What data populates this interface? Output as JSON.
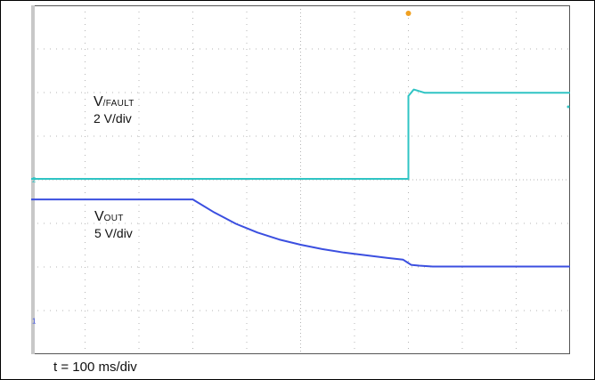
{
  "chart_data": {
    "type": "line",
    "title": "",
    "xlabel": "",
    "ylabel": "",
    "divisions": {
      "x": 10,
      "y": 8
    },
    "grid": true,
    "time_scale_label": "t = 100 ms/div",
    "xlim": [
      0,
      1000
    ],
    "x_unit": "ms",
    "series": [
      {
        "label_prefix": "V",
        "label_sub": "/FAULT",
        "scale_label": "2 V/div",
        "color": "#2fc4c4",
        "volts_per_div": 2,
        "ground_marker": "2",
        "x": [
          0,
          700,
          700,
          710,
          730,
          800,
          1000
        ],
        "y": [
          0,
          0,
          3.8,
          4.1,
          3.95,
          3.95,
          3.95
        ]
      },
      {
        "label_prefix": "V",
        "label_sub": "OUT",
        "scale_label": "5 V/div",
        "color": "#3b4fe0",
        "volts_per_div": 5,
        "ground_marker": "1",
        "x": [
          0,
          50,
          100,
          200,
          300,
          340,
          380,
          420,
          460,
          500,
          540,
          580,
          620,
          660,
          690,
          700,
          705,
          720,
          745,
          800,
          900,
          1000
        ],
        "y": [
          13.8,
          13.8,
          13.8,
          13.8,
          13.8,
          12.3,
          11.0,
          10.0,
          9.2,
          8.6,
          8.1,
          7.7,
          7.4,
          7.1,
          6.9,
          6.5,
          6.3,
          6.2,
          6.1,
          6.1,
          6.1,
          6.1
        ]
      }
    ],
    "colors": {
      "background": "#ffffff",
      "grid_dots": "#b5b5b5",
      "frame": "#555555",
      "trigger_marker": "#f0a020"
    }
  }
}
